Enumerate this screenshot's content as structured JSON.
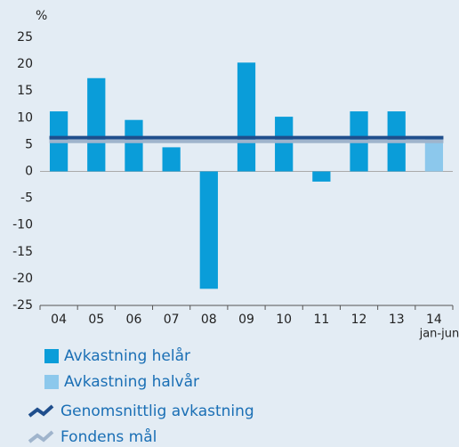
{
  "chart_data": {
    "type": "bar",
    "y_unit": "%",
    "categories": [
      "04",
      "05",
      "06",
      "07",
      "08",
      "09",
      "10",
      "11",
      "12",
      "13",
      "14"
    ],
    "category_note": "jan-jun",
    "series": [
      {
        "name": "Avkastning helår",
        "color": "#0a9dd9",
        "values": [
          11.2,
          17.4,
          9.6,
          4.5,
          -21.9,
          20.3,
          10.2,
          -1.9,
          11.2,
          11.2,
          null
        ]
      },
      {
        "name": "Avkastning halvår",
        "color": "#8cc8ec",
        "values": [
          null,
          null,
          null,
          null,
          null,
          null,
          null,
          null,
          null,
          null,
          6.4
        ]
      }
    ],
    "reference_lines": [
      {
        "name": "Genomsnittlig avkastning",
        "color": "#1f4e8c",
        "value": 6.3
      },
      {
        "name": "Fondens mål",
        "color": "#9fb4cc",
        "value": 5.6
      }
    ],
    "ylim": [
      -25,
      25
    ],
    "yticks": [
      25,
      20,
      15,
      10,
      5,
      0,
      -5,
      -10,
      -15,
      -20,
      -25
    ]
  }
}
